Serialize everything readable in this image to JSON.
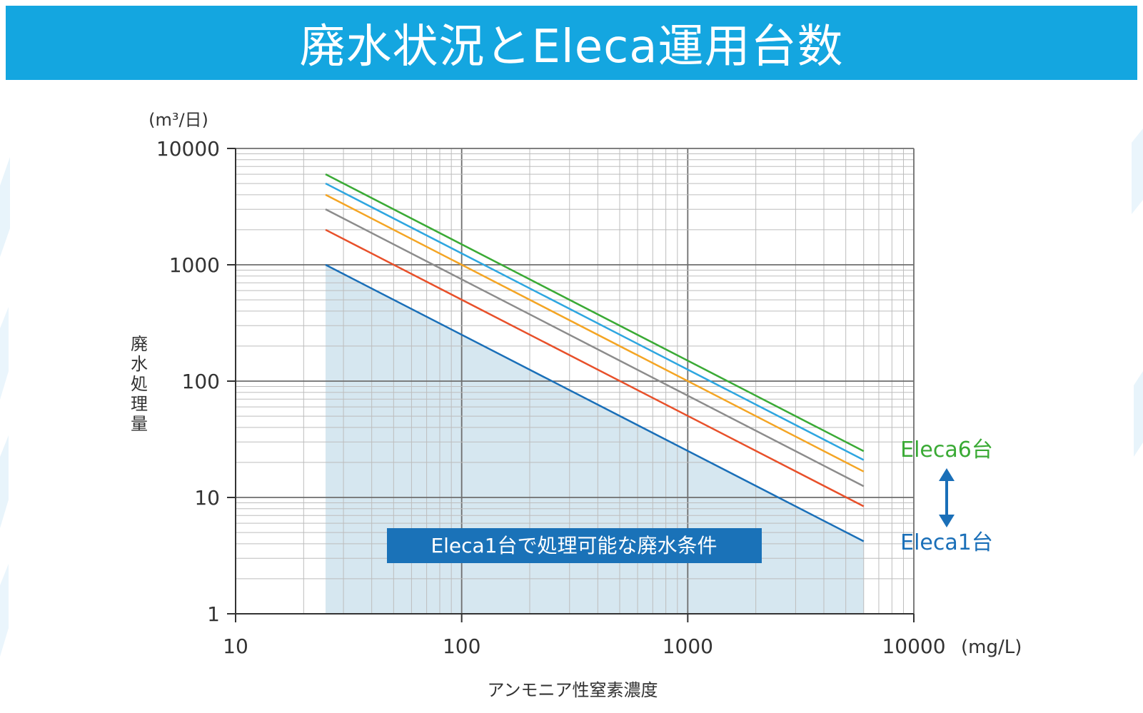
{
  "title": "廃水状況とEleca運用台数",
  "chart_data": {
    "type": "line",
    "xscale": "log",
    "yscale": "log",
    "xlim": [
      10,
      10000
    ],
    "ylim": [
      1,
      10000
    ],
    "grid": true,
    "y_unit": "(m³/日)",
    "x_unit": "(mg/L)",
    "xlabel": "アンモニア性窒素濃度",
    "ylabel": "廃水処理量",
    "x_ticks": [
      "10",
      "100",
      "1000",
      "10000"
    ],
    "y_ticks": [
      "10000",
      "1000",
      "100",
      "10",
      "1"
    ],
    "series": [
      {
        "units": 1,
        "color": "#1a6fb8",
        "points": [
          [
            25,
            1000
          ],
          [
            6000,
            4.2
          ]
        ]
      },
      {
        "units": 2,
        "color": "#e8502a",
        "points": [
          [
            25,
            2000
          ],
          [
            6000,
            8.4
          ]
        ]
      },
      {
        "units": 3,
        "color": "#8c8c8c",
        "points": [
          [
            25,
            3000
          ],
          [
            6000,
            12.5
          ]
        ]
      },
      {
        "units": 4,
        "color": "#f4a524",
        "points": [
          [
            25,
            4000
          ],
          [
            6000,
            16.7
          ]
        ]
      },
      {
        "units": 5,
        "color": "#2ea6e0",
        "points": [
          [
            25,
            5000
          ],
          [
            6000,
            21
          ]
        ]
      },
      {
        "units": 6,
        "color": "#3aaa35",
        "points": [
          [
            25,
            6000
          ],
          [
            6000,
            25
          ]
        ]
      }
    ],
    "shaded_region": {
      "label": "Eleca1台で処理可能な廃水条件",
      "color": "#d6e7f0",
      "x_range": [
        25,
        6000
      ]
    },
    "annotations": {
      "top_label": "Eleca6台",
      "top_color": "#3aaa35",
      "bottom_label": "Eleca1台",
      "bottom_color": "#1a6fb8",
      "arrow_color": "#1a6fb8"
    }
  }
}
